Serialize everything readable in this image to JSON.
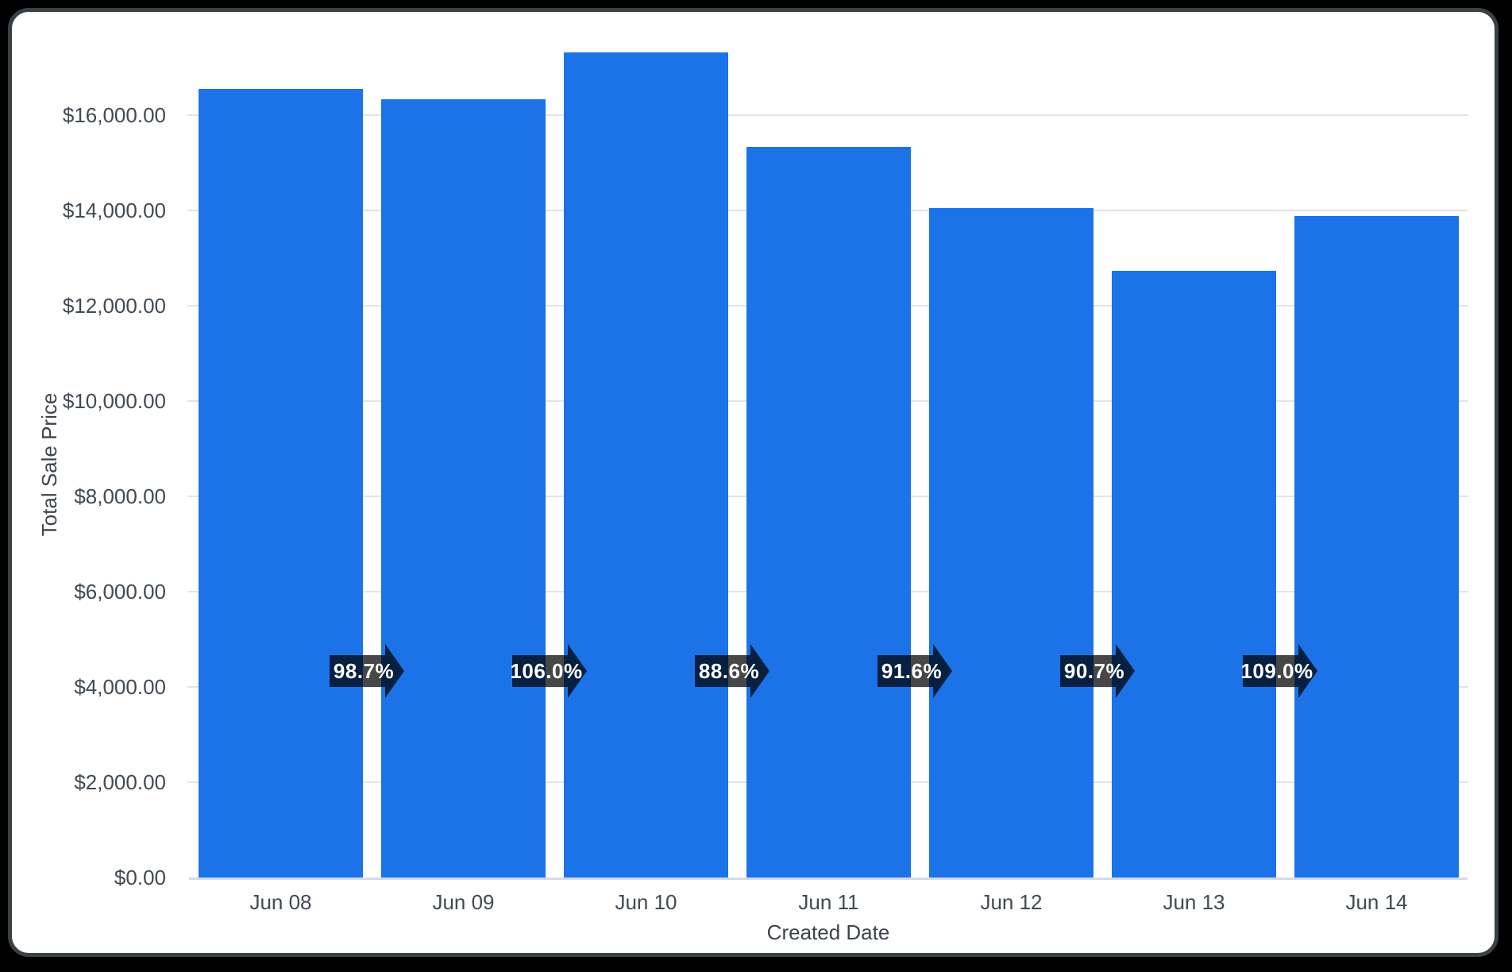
{
  "window": {
    "background_color": "#000000",
    "card_background": "#ffffff",
    "card_frame_color": "#3a4145"
  },
  "chart_data": {
    "type": "bar",
    "title": "",
    "xlabel": "Created Date",
    "ylabel": "Total Sale Price",
    "categories": [
      "Jun 08",
      "Jun 09",
      "Jun 10",
      "Jun 11",
      "Jun 12",
      "Jun 13",
      "Jun 14"
    ],
    "values": [
      16550,
      16330,
      17310,
      15340,
      14050,
      12740,
      13890
    ],
    "value_unit": "USD",
    "y_tick_values": [
      0,
      2000,
      4000,
      6000,
      8000,
      10000,
      12000,
      14000,
      16000
    ],
    "y_tick_labels": [
      "$0.00",
      "$2,000.00",
      "$4,000.00",
      "$6,000.00",
      "$8,000.00",
      "$10,000.00",
      "$12,000.00",
      "$14,000.00",
      "$16,000.00"
    ],
    "ylim": [
      0,
      18160
    ],
    "grid": "horizontal",
    "legend": "none",
    "growth_arrows": {
      "description": "period-over-period percent-change arrow badges shown between adjacent bars",
      "labels": [
        "98.7%",
        "106.0%",
        "88.6%",
        "91.6%",
        "90.7%",
        "109.0%"
      ],
      "badge_color": "rgba(0,0,0,0.72)",
      "text_color": "#ffffff"
    },
    "colors": {
      "bar": "#1c73e8",
      "gridline": "#e4e4e4",
      "baseline": "#d3daea",
      "axis_label": "#414a52",
      "axis_title": "#3d444c"
    }
  }
}
